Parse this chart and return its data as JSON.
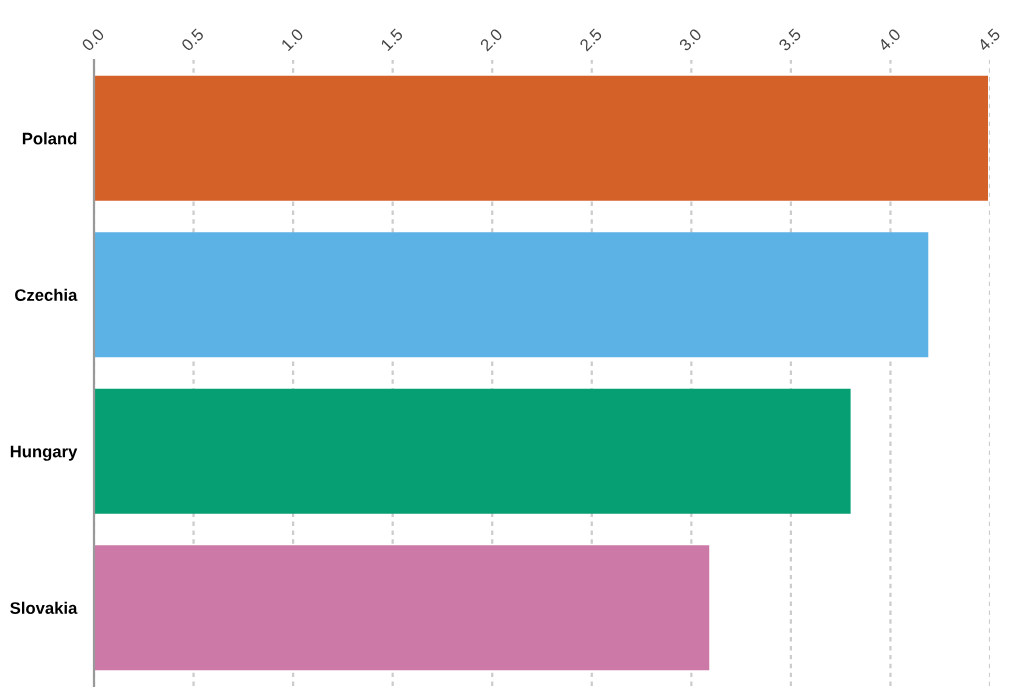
{
  "chart_data": {
    "type": "bar",
    "orientation": "horizontal",
    "categories": [
      "Poland",
      "Czechia",
      "Hungary",
      "Slovakia"
    ],
    "values": [
      4.49,
      4.19,
      3.8,
      3.09
    ],
    "colors": [
      "#d46128",
      "#5cb2e4",
      "#069e73",
      "#cc79a8"
    ],
    "xlim": [
      0,
      4.5
    ],
    "xticks": [
      {
        "value": 0,
        "label": "0.0"
      },
      0.5,
      {
        "value": 1,
        "label": "1.0"
      },
      1.5,
      {
        "value": 2,
        "label": "2.0"
      },
      2.5,
      {
        "value": 3,
        "label": "3.0"
      },
      3.5,
      {
        "value": 4,
        "label": "4.0"
      },
      4.5
    ],
    "grid": "x"
  }
}
